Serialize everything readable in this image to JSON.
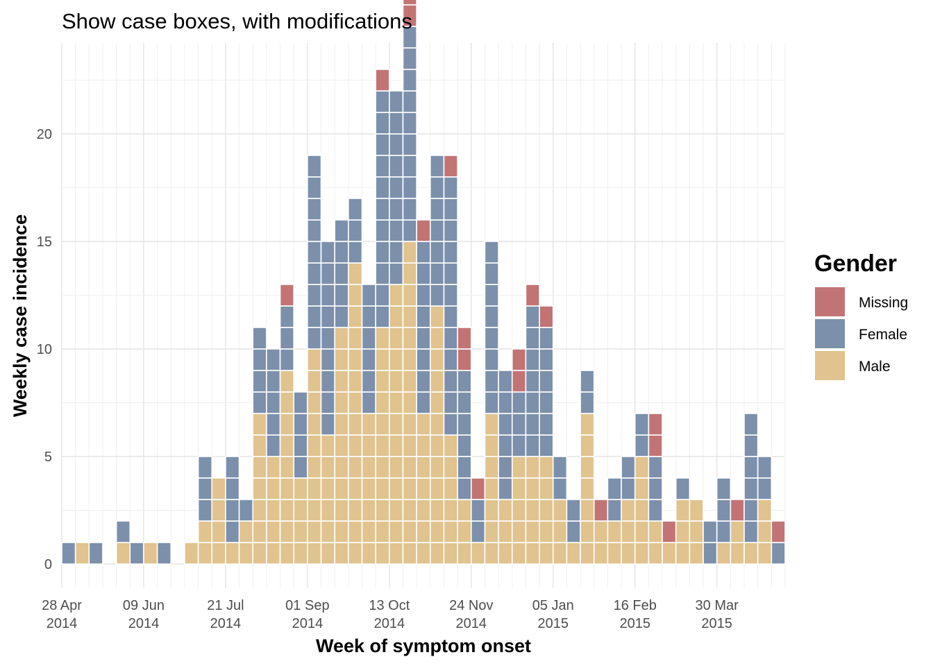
{
  "chart_data": {
    "type": "bar",
    "subtype": "stacked case boxes (histogram)",
    "title": "Show case boxes, with modifications",
    "xlabel": "Week of symptom onset",
    "ylabel": "Weekly case incidence",
    "ylim": [
      -1.1,
      24.2
    ],
    "y_ticks": [
      0,
      5,
      10,
      15,
      20
    ],
    "grid": true,
    "legend_position": "right",
    "x_tick_labels": [
      {
        "week": 0,
        "line1": "28 Apr",
        "line2": "2014"
      },
      {
        "week": 6,
        "line1": "09 Jun",
        "line2": "2014"
      },
      {
        "week": 12,
        "line1": "21 Jul",
        "line2": "2014"
      },
      {
        "week": 18,
        "line1": "01 Sep",
        "line2": "2014"
      },
      {
        "week": 24,
        "line1": "13 Oct",
        "line2": "2014"
      },
      {
        "week": 30,
        "line1": "24 Nov",
        "line2": "2014"
      },
      {
        "week": 36,
        "line1": "05 Jan",
        "line2": "2015"
      },
      {
        "week": 42,
        "line1": "16 Feb",
        "line2": "2015"
      },
      {
        "week": 48,
        "line1": "30 Mar",
        "line2": "2015"
      }
    ],
    "weeks": [
      "2014-04-28",
      "2014-05-05",
      "2014-05-12",
      "2014-05-19",
      "2014-05-26",
      "2014-06-02",
      "2014-06-09",
      "2014-06-16",
      "2014-06-23",
      "2014-06-30",
      "2014-07-07",
      "2014-07-14",
      "2014-07-21",
      "2014-07-28",
      "2014-08-04",
      "2014-08-11",
      "2014-08-18",
      "2014-08-25",
      "2014-09-01",
      "2014-09-08",
      "2014-09-15",
      "2014-09-22",
      "2014-09-29",
      "2014-10-06",
      "2014-10-13",
      "2014-10-20",
      "2014-10-27",
      "2014-11-03",
      "2014-11-10",
      "2014-11-17",
      "2014-11-24",
      "2014-12-01",
      "2014-12-08",
      "2014-12-15",
      "2014-12-22",
      "2014-12-29",
      "2015-01-05",
      "2015-01-12",
      "2015-01-19",
      "2015-01-26",
      "2015-02-02",
      "2015-02-09",
      "2015-02-16",
      "2015-02-23",
      "2015-03-02",
      "2015-03-09",
      "2015-03-16",
      "2015-03-23",
      "2015-03-30",
      "2015-04-06",
      "2015-04-13",
      "2015-04-20",
      "2015-04-27"
    ],
    "series": [
      {
        "name": "Male",
        "color": "#E0C38E",
        "values": [
          0,
          1,
          0,
          0,
          1,
          0,
          1,
          0,
          0,
          1,
          2,
          4,
          1,
          2,
          7,
          5,
          9,
          4,
          10,
          6,
          11,
          14,
          7,
          11,
          13,
          15,
          7,
          12,
          6,
          3,
          1,
          7,
          3,
          5,
          5,
          5,
          3,
          1,
          7,
          2,
          2,
          3,
          5,
          2,
          1,
          3,
          3,
          0,
          1,
          2,
          1,
          3,
          0
        ]
      },
      {
        "name": "Female",
        "color": "#7C90AB",
        "values": [
          1,
          0,
          1,
          0,
          1,
          1,
          0,
          1,
          0,
          0,
          3,
          0,
          4,
          1,
          4,
          5,
          3,
          4,
          9,
          9,
          5,
          3,
          6,
          11,
          9,
          10,
          8,
          7,
          12,
          6,
          2,
          8,
          6,
          3,
          7,
          6,
          2,
          2,
          2,
          0,
          2,
          2,
          2,
          3,
          0,
          1,
          0,
          2,
          3,
          0,
          6,
          2,
          1
        ]
      },
      {
        "name": "Missing",
        "color": "#C27475",
        "values": [
          0,
          0,
          0,
          0,
          0,
          0,
          0,
          0,
          0,
          0,
          0,
          0,
          0,
          0,
          0,
          0,
          1,
          0,
          0,
          0,
          0,
          0,
          0,
          1,
          0,
          3,
          1,
          0,
          1,
          2,
          1,
          0,
          0,
          2,
          1,
          1,
          0,
          0,
          0,
          1,
          0,
          0,
          0,
          2,
          1,
          0,
          0,
          0,
          0,
          1,
          0,
          0,
          1
        ]
      }
    ]
  },
  "legend": {
    "title": "Gender",
    "items": [
      {
        "label": "Missing",
        "color": "#C27475"
      },
      {
        "label": "Female",
        "color": "#7C90AB"
      },
      {
        "label": "Male",
        "color": "#E0C38E"
      }
    ]
  }
}
